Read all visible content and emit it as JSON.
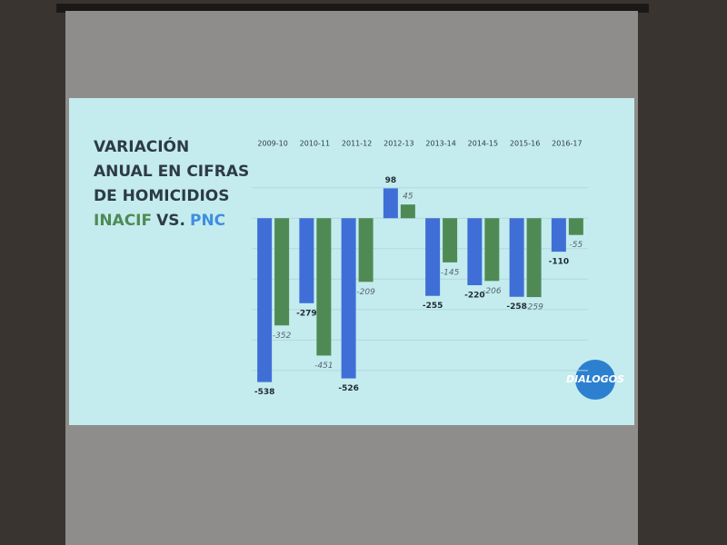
{
  "chart_data": {
    "type": "bar",
    "title": [
      "VARIACIÓN",
      "ANUAL EN CIFRAS",
      "DE HOMICIDIOS"
    ],
    "vs_label": "VS.",
    "logo": "DIALOGOS",
    "categories": [
      "2009-10",
      "2010-11",
      "2011-12",
      "2012-13",
      "2013-14",
      "2014-15",
      "2015-16",
      "2016-17"
    ],
    "series": [
      {
        "name": "PNC",
        "color": "#3f6fd6",
        "values": [
          -538,
          -279,
          -526,
          98,
          -255,
          -220,
          -258,
          -110
        ]
      },
      {
        "name": "INACIF",
        "color": "#4f8a55",
        "values": [
          -352,
          -451,
          -209,
          45,
          -145,
          -206,
          -259,
          -55
        ]
      }
    ],
    "ylim": [
      -560,
      120
    ],
    "yticks": [
      -500,
      -400,
      -300,
      -200,
      -100,
      0,
      100
    ],
    "grid": true
  }
}
